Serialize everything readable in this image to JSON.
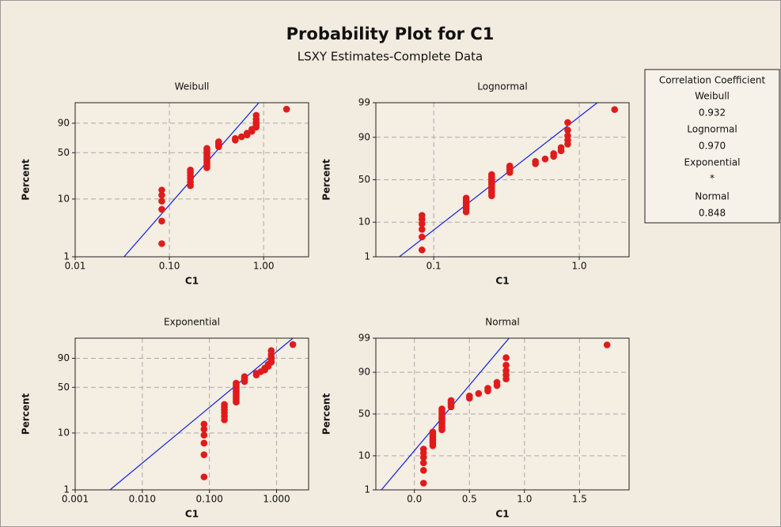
{
  "title": "Probability Plot for C1",
  "subtitle": "LSXY Estimates-Complete Data",
  "legend": {
    "title": "Correlation Coefficient",
    "entries": [
      {
        "label": "Weibull",
        "value": 0.932
      },
      {
        "label": "Lognormal",
        "value": "0.970"
      },
      {
        "label": "Exponential",
        "value": "*"
      },
      {
        "label": "Normal",
        "value": 0.848
      }
    ]
  },
  "chart_data": [
    {
      "type": "scatter",
      "title": "Weibull",
      "xlabel": "C1",
      "ylabel": "Percent",
      "x_scale": "log",
      "y_scale": "weibull",
      "grid": true,
      "xlim": [
        0.01,
        3
      ],
      "ylim": [
        1,
        99.5
      ],
      "xticks": [
        0.01,
        {
          "value": 0.1,
          "label": "0.10"
        },
        {
          "value": 1,
          "label": "1.00"
        }
      ],
      "yticks": [
        1,
        10,
        50,
        90
      ],
      "x": [
        0.083,
        0.083,
        0.083,
        0.083,
        0.083,
        0.083,
        0.167,
        0.167,
        0.167,
        0.167,
        0.167,
        0.167,
        0.25,
        0.25,
        0.25,
        0.25,
        0.25,
        0.25,
        0.25,
        0.25,
        0.25,
        0.25,
        0.25,
        0.333,
        0.333,
        0.333,
        0.333,
        0.5,
        0.5,
        0.583,
        0.667,
        0.667,
        0.75,
        0.75,
        0.833,
        0.833,
        0.833,
        0.833,
        0.833,
        1.75
      ],
      "series": [
        {
          "color": "#e01b1b",
          "values": [
            1.7,
            4.2,
            6.7,
            9.2,
            11.6,
            14.1,
            16.6,
            19.1,
            21.5,
            24.0,
            26.5,
            29.0,
            31.4,
            33.9,
            36.4,
            38.9,
            41.3,
            43.8,
            46.3,
            48.8,
            51.2,
            53.7,
            56.2,
            58.7,
            61.1,
            63.6,
            66.1,
            68.6,
            71.0,
            73.5,
            76.0,
            78.5,
            80.9,
            83.4,
            85.9,
            88.4,
            90.8,
            93.3,
            95.8,
            98.3
          ]
        }
      ],
      "fit": {
        "color": "#1020e0",
        "x": [
          0.033,
          0.89
        ],
        "values": [
          1,
          99.5
        ]
      }
    },
    {
      "type": "scatter",
      "title": "Lognormal",
      "xlabel": "C1",
      "ylabel": "Percent",
      "x_scale": "log",
      "y_scale": "normal",
      "grid": true,
      "xlim": [
        0.04,
        2.2
      ],
      "ylim": [
        1,
        99
      ],
      "xticks": [
        0.1,
        {
          "value": 1,
          "label": "1.0"
        }
      ],
      "yticks": [
        1,
        10,
        50,
        90,
        99
      ],
      "x": [
        0.083,
        0.083,
        0.083,
        0.083,
        0.083,
        0.083,
        0.167,
        0.167,
        0.167,
        0.167,
        0.167,
        0.167,
        0.25,
        0.25,
        0.25,
        0.25,
        0.25,
        0.25,
        0.25,
        0.25,
        0.25,
        0.25,
        0.25,
        0.333,
        0.333,
        0.333,
        0.333,
        0.5,
        0.5,
        0.583,
        0.667,
        0.667,
        0.75,
        0.75,
        0.833,
        0.833,
        0.833,
        0.833,
        0.833,
        1.75
      ],
      "series": [
        {
          "color": "#e01b1b",
          "values": [
            1.7,
            4.2,
            6.7,
            9.2,
            11.6,
            14.1,
            16.6,
            19.1,
            21.5,
            24.0,
            26.5,
            29.0,
            31.4,
            33.9,
            36.4,
            38.9,
            41.3,
            43.8,
            46.3,
            48.8,
            51.2,
            53.7,
            56.2,
            58.7,
            61.1,
            63.6,
            66.1,
            68.6,
            71.0,
            73.5,
            76.0,
            78.5,
            80.9,
            83.4,
            85.9,
            88.4,
            90.8,
            93.3,
            95.8,
            98.3
          ]
        }
      ],
      "fit": {
        "color": "#1020e0",
        "x": [
          0.058,
          1.33
        ],
        "values": [
          1,
          99
        ]
      }
    },
    {
      "type": "scatter",
      "title": "Exponential",
      "xlabel": "C1",
      "ylabel": "Percent",
      "x_scale": "log",
      "y_scale": "weibull",
      "grid": true,
      "xlim": [
        0.001,
        3
      ],
      "ylim": [
        1,
        99.5
      ],
      "xticks": [
        0.001,
        {
          "value": 0.01,
          "label": "0.010"
        },
        {
          "value": 0.1,
          "label": "0.100"
        },
        {
          "value": 1,
          "label": "1.000"
        }
      ],
      "yticks": [
        1,
        10,
        50,
        90
      ],
      "x": [
        0.083,
        0.083,
        0.083,
        0.083,
        0.083,
        0.083,
        0.167,
        0.167,
        0.167,
        0.167,
        0.167,
        0.167,
        0.25,
        0.25,
        0.25,
        0.25,
        0.25,
        0.25,
        0.25,
        0.25,
        0.25,
        0.25,
        0.25,
        0.333,
        0.333,
        0.333,
        0.333,
        0.5,
        0.5,
        0.583,
        0.667,
        0.667,
        0.75,
        0.75,
        0.833,
        0.833,
        0.833,
        0.833,
        0.833,
        1.75
      ],
      "series": [
        {
          "color": "#e01b1b",
          "values": [
            1.7,
            4.2,
            6.7,
            9.2,
            11.6,
            14.1,
            16.6,
            19.1,
            21.5,
            24.0,
            26.5,
            29.0,
            31.4,
            33.9,
            36.4,
            38.9,
            41.3,
            43.8,
            46.3,
            48.8,
            51.2,
            53.7,
            56.2,
            58.7,
            61.1,
            63.6,
            66.1,
            68.6,
            71.0,
            73.5,
            76.0,
            78.5,
            80.9,
            83.4,
            85.9,
            88.4,
            90.8,
            93.3,
            95.8,
            98.3
          ]
        }
      ],
      "fit": {
        "color": "#1020e0",
        "x": [
          0.0033,
          1.75
        ],
        "values": [
          1,
          99.5
        ]
      }
    },
    {
      "type": "scatter",
      "title": "Normal",
      "xlabel": "C1",
      "ylabel": "Percent",
      "x_scale": "linear",
      "y_scale": "normal",
      "grid": true,
      "xlim": [
        -0.35,
        1.95
      ],
      "ylim": [
        1,
        99
      ],
      "xticks": [
        {
          "value": 0,
          "label": "0.0"
        },
        0.5,
        {
          "value": 1,
          "label": "1.0"
        },
        1.5
      ],
      "yticks": [
        1,
        10,
        50,
        90,
        99
      ],
      "x": [
        0.083,
        0.083,
        0.083,
        0.083,
        0.083,
        0.083,
        0.167,
        0.167,
        0.167,
        0.167,
        0.167,
        0.167,
        0.25,
        0.25,
        0.25,
        0.25,
        0.25,
        0.25,
        0.25,
        0.25,
        0.25,
        0.25,
        0.25,
        0.333,
        0.333,
        0.333,
        0.333,
        0.5,
        0.5,
        0.583,
        0.667,
        0.667,
        0.75,
        0.75,
        0.833,
        0.833,
        0.833,
        0.833,
        0.833,
        1.75
      ],
      "series": [
        {
          "color": "#e01b1b",
          "values": [
            1.7,
            4.2,
            6.7,
            9.2,
            11.6,
            14.1,
            16.6,
            19.1,
            21.5,
            24.0,
            26.5,
            29.0,
            31.4,
            33.9,
            36.4,
            38.9,
            41.3,
            43.8,
            46.3,
            48.8,
            51.2,
            53.7,
            56.2,
            58.7,
            61.1,
            63.6,
            66.1,
            68.6,
            71.0,
            73.5,
            76.0,
            78.5,
            80.9,
            83.4,
            85.9,
            88.4,
            90.8,
            93.3,
            95.8,
            98.3
          ]
        }
      ],
      "fit": {
        "color": "#1020e0",
        "x": [
          -0.3,
          0.86
        ],
        "values": [
          1,
          99
        ]
      }
    }
  ]
}
